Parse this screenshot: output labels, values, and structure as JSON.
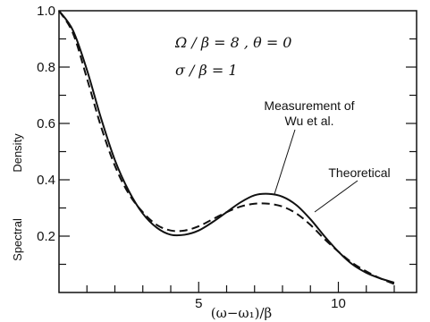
{
  "chart_data": {
    "type": "line",
    "title": "",
    "xlabel": "(ω−ω₁)/β",
    "ylabel": [
      "Spectral",
      "Density"
    ],
    "xlim": [
      0,
      12.8
    ],
    "ylim": [
      0,
      1.0
    ],
    "x_tick_labels": [
      {
        "value": 5,
        "label": "5"
      },
      {
        "value": 10,
        "label": "10"
      }
    ],
    "y_tick_labels": [
      {
        "value": 0.2,
        "label": "0.2"
      },
      {
        "value": 0.4,
        "label": "0.4"
      },
      {
        "value": 0.6,
        "label": "0.6"
      },
      {
        "value": 0.8,
        "label": "0.8"
      },
      {
        "value": 1.0,
        "label": "1.0"
      }
    ],
    "x_minor_ticks": [
      1,
      2,
      3,
      4,
      5,
      6,
      7,
      8,
      9,
      10,
      11,
      12
    ],
    "y_minor_ticks": [
      0.1,
      0.2,
      0.3,
      0.4,
      0.5,
      0.6,
      0.7,
      0.8,
      0.9
    ],
    "parameters": [
      "Ω / β  = 8 , θ = 0",
      "σ / β  = 1"
    ],
    "series": [
      {
        "name": "Measurement of Wu et al.",
        "style": "solid",
        "x": [
          0,
          0.5,
          1.0,
          1.5,
          2.0,
          2.5,
          3.0,
          3.5,
          4.0,
          4.5,
          5.0,
          5.5,
          6.0,
          6.5,
          7.0,
          7.5,
          8.0,
          8.5,
          9.0,
          9.5,
          10.0,
          10.5,
          11.0,
          11.5,
          12.0
        ],
        "y": [
          1.0,
          0.93,
          0.79,
          0.62,
          0.47,
          0.36,
          0.28,
          0.23,
          0.205,
          0.205,
          0.22,
          0.25,
          0.285,
          0.32,
          0.345,
          0.35,
          0.34,
          0.31,
          0.26,
          0.2,
          0.145,
          0.1,
          0.07,
          0.05,
          0.035
        ]
      },
      {
        "name": "Theoretical",
        "style": "dashed",
        "x": [
          0,
          0.5,
          1.0,
          1.5,
          2.0,
          2.5,
          3.0,
          3.5,
          4.0,
          4.5,
          5.0,
          5.5,
          6.0,
          6.5,
          7.0,
          7.5,
          8.0,
          8.5,
          9.0,
          9.5,
          10.0,
          10.5,
          11.0,
          11.5,
          12.0
        ],
        "y": [
          1.0,
          0.92,
          0.76,
          0.59,
          0.45,
          0.35,
          0.285,
          0.24,
          0.22,
          0.22,
          0.235,
          0.26,
          0.285,
          0.305,
          0.315,
          0.315,
          0.305,
          0.28,
          0.24,
          0.19,
          0.145,
          0.105,
          0.075,
          0.05,
          0.03
        ]
      }
    ],
    "annotations": [
      {
        "lines": [
          "Measurement of",
          "Wu et al."
        ],
        "points_to": "Measurement of Wu et al."
      },
      {
        "lines": [
          "Theoretical"
        ],
        "points_to": "Theoretical"
      }
    ],
    "grid": false,
    "legend": "none"
  },
  "colors": {
    "line": "#111111",
    "background": "#ffffff"
  }
}
